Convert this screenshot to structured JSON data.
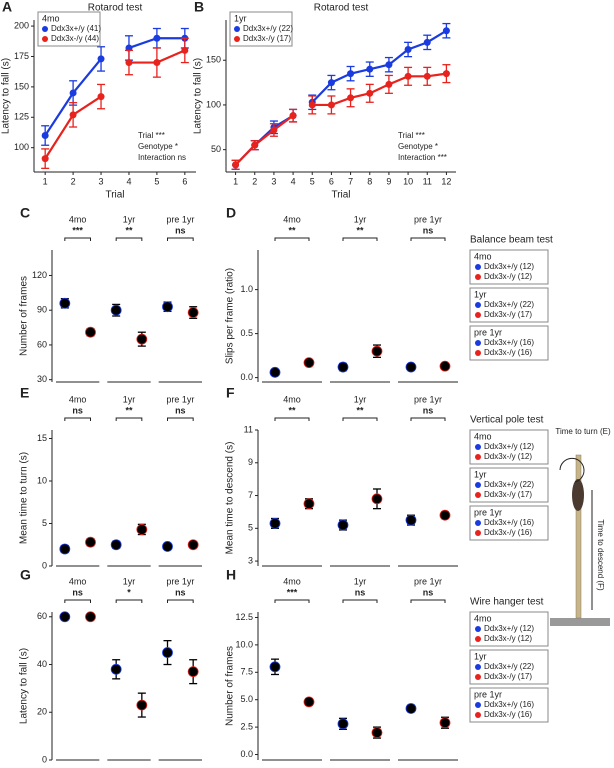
{
  "chart_data": [
    {
      "type": "line",
      "panel": "A",
      "title": "Rotarod test",
      "legend_title": "4mo",
      "xlabel": "Trial",
      "ylabel": "Latency to fall (s)",
      "x": [
        1,
        2,
        3,
        4,
        5,
        6
      ],
      "xlim": [
        0.6,
        6.4
      ],
      "ylim": [
        80,
        205
      ],
      "yticks": [
        100,
        125,
        150,
        175,
        200
      ],
      "break_after": 3,
      "annotations": [
        "Trial ***",
        "Genotype *",
        "Interaction ns"
      ],
      "series": [
        {
          "name": "Ddx3x+/y (41)",
          "color": "#1a3be0",
          "values": [
            110,
            145,
            173,
            182,
            190,
            190
          ],
          "errors": [
            8,
            10,
            10,
            10,
            8,
            8
          ]
        },
        {
          "name": "Ddx3x-/y (44)",
          "color": "#e8221c",
          "values": [
            91,
            127,
            142,
            170,
            170,
            180
          ],
          "errors": [
            8,
            10,
            10,
            10,
            12,
            10
          ]
        }
      ]
    },
    {
      "type": "line",
      "panel": "B",
      "title": "Rotarod test",
      "legend_title": "1yr",
      "xlabel": "Trial",
      "ylabel": "Latency to fall (s)",
      "x": [
        1,
        2,
        3,
        4,
        5,
        6,
        7,
        8,
        9,
        10,
        11,
        12
      ],
      "xlim": [
        0.5,
        12.5
      ],
      "ylim": [
        25,
        195
      ],
      "yticks": [
        50,
        100,
        150
      ],
      "break_after": 4,
      "annotations": [
        "Trial ***",
        "Genotype *",
        "Interaction ***"
      ],
      "series": [
        {
          "name": "Ddx3x+/y (22)",
          "color": "#1a3be0",
          "values": [
            33,
            55,
            75,
            88,
            103,
            125,
            135,
            140,
            145,
            162,
            170,
            183
          ],
          "errors": [
            5,
            5,
            7,
            7,
            8,
            8,
            8,
            8,
            8,
            8,
            8,
            8
          ]
        },
        {
          "name": "Ddx3x-/y (17)",
          "color": "#e8221c",
          "values": [
            33,
            55,
            72,
            88,
            100,
            100,
            108,
            113,
            123,
            132,
            132,
            135
          ],
          "errors": [
            5,
            5,
            7,
            7,
            10,
            10,
            10,
            10,
            10,
            10,
            10,
            10
          ]
        }
      ]
    },
    {
      "type": "dot",
      "panel": "C",
      "ylabel": "Number of frames",
      "groups": [
        "4mo",
        "1yr",
        "pre 1yr"
      ],
      "significance": [
        "***",
        "**",
        "ns"
      ],
      "ylim": [
        28,
        142
      ],
      "yticks": [
        30,
        60,
        90,
        120
      ],
      "series": [
        {
          "color": "#1a3be0",
          "values": [
            96,
            90,
            93
          ],
          "errors": [
            4,
            5,
            4
          ]
        },
        {
          "color": "#e8221c",
          "values": [
            71,
            65,
            88
          ],
          "errors": [
            3,
            6,
            5
          ]
        }
      ]
    },
    {
      "type": "dot",
      "panel": "D",
      "ylabel": "Slips per frame (ratio)",
      "groups": [
        "4mo",
        "1yr",
        "pre 1yr"
      ],
      "significance": [
        "**",
        "**",
        "ns"
      ],
      "ylim": [
        -0.05,
        1.45
      ],
      "yticks": [
        {
          "value": 0,
          "label": "0.0"
        },
        {
          "value": 0.5,
          "label": "0.5"
        },
        {
          "value": 1,
          "label": "1.0"
        }
      ],
      "series": [
        {
          "color": "#1a3be0",
          "values": [
            0.06,
            0.12,
            0.12
          ],
          "errors": [
            0.01,
            0.04,
            0.02
          ]
        },
        {
          "color": "#e8221c",
          "values": [
            0.17,
            0.3,
            0.13
          ],
          "errors": [
            0.03,
            0.07,
            0.02
          ]
        }
      ]
    },
    {
      "type": "dot",
      "panel": "E",
      "ylabel": "Mean time to turn (s)",
      "groups": [
        "4mo",
        "1yr",
        "pre 1yr"
      ],
      "significance": [
        "ns",
        "**",
        "ns"
      ],
      "ylim": [
        0,
        16
      ],
      "yticks": [
        0,
        5,
        10,
        15
      ],
      "series": [
        {
          "color": "#1a3be0",
          "values": [
            2.0,
            2.5,
            2.3
          ],
          "errors": [
            0.4,
            0.4,
            0.3
          ]
        },
        {
          "color": "#e8221c",
          "values": [
            2.8,
            4.3,
            2.5
          ],
          "errors": [
            0.4,
            0.6,
            0.3
          ]
        }
      ]
    },
    {
      "type": "dot",
      "panel": "F",
      "ylabel": "Mean time to descend (s)",
      "groups": [
        "4mo",
        "1yr",
        "pre 1yr"
      ],
      "significance": [
        "**",
        "**",
        "ns"
      ],
      "ylim": [
        2.7,
        11
      ],
      "yticks": [
        3,
        5,
        7,
        9,
        11
      ],
      "series": [
        {
          "color": "#1a3be0",
          "values": [
            5.3,
            5.2,
            5.5
          ],
          "errors": [
            0.3,
            0.3,
            0.3
          ]
        },
        {
          "color": "#e8221c",
          "values": [
            6.5,
            6.8,
            5.8
          ],
          "errors": [
            0.3,
            0.6,
            0.2
          ]
        }
      ]
    },
    {
      "type": "dot",
      "panel": "G",
      "ylabel": "Latency to fall (s)",
      "groups": [
        "4mo",
        "1yr",
        "pre 1yr"
      ],
      "significance": [
        "ns",
        "*",
        "ns"
      ],
      "ylim": [
        0,
        62
      ],
      "yticks": [
        0,
        20,
        40,
        60
      ],
      "series": [
        {
          "color": "#1a3be0",
          "values": [
            60,
            38,
            45
          ],
          "errors": [
            0,
            4,
            5
          ]
        },
        {
          "color": "#e8221c",
          "values": [
            60,
            23,
            37
          ],
          "errors": [
            0,
            5,
            5
          ]
        }
      ]
    },
    {
      "type": "dot",
      "panel": "H",
      "ylabel": "Number of frames",
      "groups": [
        "4mo",
        "1yr",
        "pre 1yr"
      ],
      "significance": [
        "***",
        "ns",
        "ns"
      ],
      "ylim": [
        -0.5,
        13
      ],
      "yticks": [
        {
          "value": 0,
          "label": "0.0"
        },
        {
          "value": 2.5,
          "label": "2.5"
        },
        {
          "value": 5,
          "label": "5.0"
        },
        {
          "value": 7.5,
          "label": "7.5"
        },
        {
          "value": 10,
          "label": "10.0"
        },
        {
          "value": 12.5,
          "label": "12.5"
        }
      ],
      "series": [
        {
          "color": "#1a3be0",
          "values": [
            8,
            2.8,
            4.2
          ],
          "errors": [
            0.7,
            0.5,
            0.3
          ]
        },
        {
          "color": "#e8221c",
          "values": [
            4.8,
            2.0,
            2.9
          ],
          "errors": [
            0.3,
            0.5,
            0.5
          ]
        }
      ]
    }
  ],
  "legends": [
    {
      "title": "Balance beam test",
      "colors": [
        "#1a3be0",
        "#e8221c"
      ],
      "boxes": [
        {
          "title": "4mo",
          "entries": [
            "Ddx3x+/y (12)",
            "Ddx3x-/y (12)"
          ]
        },
        {
          "title": "1yr",
          "entries": [
            "Ddx3x+/y (22)",
            "Ddx3x-/y (17)"
          ]
        },
        {
          "title": "pre 1yr",
          "entries": [
            "Ddx3x+/y (16)",
            "Ddx3x-/y (16)"
          ]
        }
      ]
    },
    {
      "title": "Vertical pole test",
      "colors": [
        "#1a3be0",
        "#e8221c"
      ],
      "boxes": [
        {
          "title": "4mo",
          "entries": [
            "Ddx3x+/y (12)",
            "Ddx3x-/y (12)"
          ]
        },
        {
          "title": "1yr",
          "entries": [
            "Ddx3x+/y (22)",
            "Ddx3x-/y (17)"
          ]
        },
        {
          "title": "pre 1yr",
          "entries": [
            "Ddx3x+/y (16)",
            "Ddx3x-/y (16)"
          ]
        }
      ]
    },
    {
      "title": "Wire hanger test",
      "colors": [
        "#1a3be0",
        "#e8221c"
      ],
      "boxes": [
        {
          "title": "4mo",
          "entries": [
            "Ddx3x+/y (12)",
            "Ddx3x-/y (12)"
          ]
        },
        {
          "title": "1yr",
          "entries": [
            "Ddx3x+/y (22)",
            "Ddx3x-/y (17)"
          ]
        },
        {
          "title": "pre 1yr",
          "entries": [
            "Ddx3x+/y (16)",
            "Ddx3x-/y (16)"
          ]
        }
      ]
    }
  ],
  "diagram": {
    "turn_label": "Time to turn (E)",
    "descend_label": "Time to descend (F)"
  }
}
